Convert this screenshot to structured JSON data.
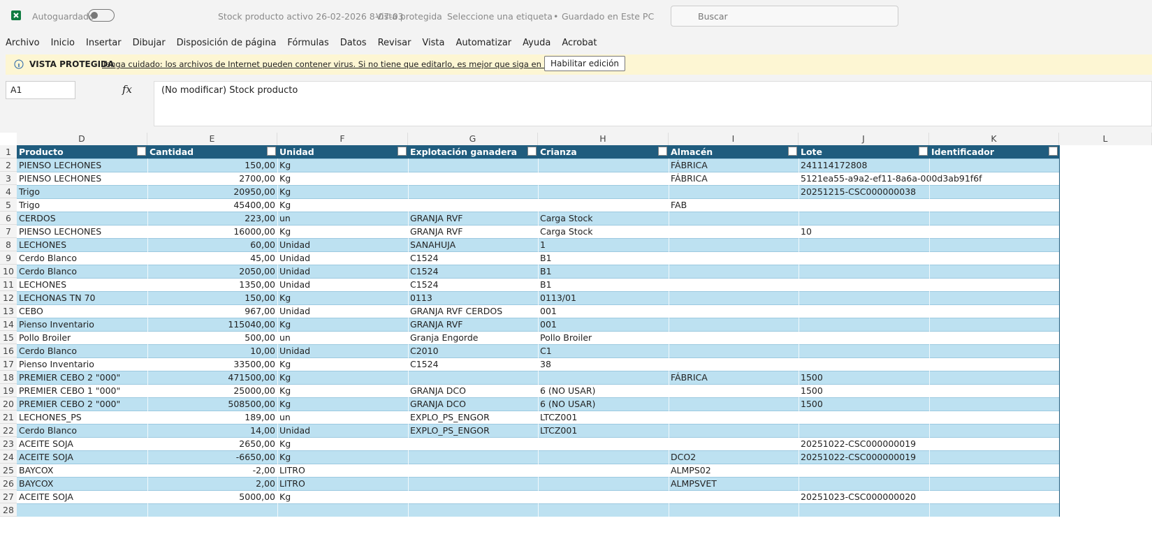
{
  "title_bar": {
    "autosave_label": "Autoguardado",
    "document_title": "Stock producto activo 26-02-2026 8-07-03",
    "view_mode": "Vista protegida",
    "sensitivity": "Seleccione una etiqueta",
    "separator": "•",
    "save_status": "Guardado en Este PC",
    "search_placeholder": "Buscar"
  },
  "menu": [
    "Archivo",
    "Inicio",
    "Insertar",
    "Dibujar",
    "Disposición de página",
    "Fórmulas",
    "Datos",
    "Revisar",
    "Vista",
    "Automatizar",
    "Ayuda",
    "Acrobat"
  ],
  "protected_bar": {
    "label": "VISTA PROTEGIDA",
    "message": "Tenga cuidado: los archivos de Internet pueden contener virus. Si no tiene que editarlo, es mejor que siga en Vista protegida.",
    "button": "Habilitar edición"
  },
  "formula_bar": {
    "name_box": "A1",
    "function_icon": "fx",
    "formula": "(No modificar) Stock producto"
  },
  "sheet": {
    "column_letters": [
      "D",
      "E",
      "F",
      "G",
      "H",
      "I",
      "J",
      "K",
      "L"
    ],
    "row_numbers": [
      1,
      2,
      3,
      4,
      5,
      6,
      7,
      8,
      9,
      10,
      11,
      12,
      13,
      14,
      15,
      16,
      17,
      18,
      19,
      20,
      21,
      22,
      23,
      24,
      25,
      26,
      27,
      28
    ],
    "header": [
      "Producto",
      "Cantidad",
      "Unidad",
      "Explotación ganadera",
      "Crianza",
      "Almacén",
      "Lote",
      "Identificador"
    ],
    "rows": [
      [
        "PIENSO LECHONES",
        "150,00",
        "Kg",
        null,
        null,
        "FÁBRICA",
        "241114172808",
        null
      ],
      [
        "PIENSO LECHONES",
        "2700,00",
        "Kg",
        null,
        null,
        "FÁBRICA",
        "5121ea55-a9a2-ef11-8a6a-000d3ab91f6f",
        null
      ],
      [
        "Trigo",
        "20950,00",
        "Kg",
        null,
        null,
        null,
        "20251215-CSC000000038",
        null
      ],
      [
        "Trigo",
        "45400,00",
        "Kg",
        null,
        null,
        "FAB",
        null,
        null
      ],
      [
        "CERDOS",
        "223,00",
        "un",
        "GRANJA RVF",
        "Carga Stock",
        null,
        null,
        null
      ],
      [
        "PIENSO LECHONES",
        "16000,00",
        "Kg",
        "GRANJA RVF",
        "Carga Stock",
        null,
        "10",
        null
      ],
      [
        "LECHONES",
        "60,00",
        "Unidad",
        "SANAHUJA",
        "1",
        null,
        null,
        null
      ],
      [
        "Cerdo Blanco",
        "45,00",
        "Unidad",
        "C1524",
        "B1",
        null,
        null,
        null
      ],
      [
        "Cerdo Blanco",
        "2050,00",
        "Unidad",
        "C1524",
        "B1",
        null,
        null,
        null
      ],
      [
        "LECHONES",
        "1350,00",
        "Unidad",
        "C1524",
        "B1",
        null,
        null,
        null
      ],
      [
        "LECHONAS TN 70",
        "150,00",
        "Kg",
        "0113",
        "0113/01",
        null,
        null,
        null
      ],
      [
        "CEBO",
        "967,00",
        "Unidad",
        "GRANJA RVF CERDOS",
        "001",
        null,
        null,
        null
      ],
      [
        "Pienso Inventario",
        "115040,00",
        "Kg",
        "GRANJA RVF",
        "001",
        null,
        null,
        null
      ],
      [
        "Pollo Broiler",
        "500,00",
        "un",
        "Granja Engorde",
        "Pollo Broiler",
        null,
        null,
        null
      ],
      [
        "Cerdo Blanco",
        "10,00",
        "Unidad",
        "C2010",
        "C1",
        null,
        null,
        null
      ],
      [
        "Pienso Inventario",
        "33500,00",
        "Kg",
        "C1524",
        "38",
        null,
        null,
        null
      ],
      [
        "PREMIER CEBO 2 \"000\"",
        "471500,00",
        "Kg",
        null,
        null,
        "FÁBRICA",
        "1500",
        null
      ],
      [
        "PREMIER CEBO 1 \"000\"",
        "25000,00",
        "Kg",
        "GRANJA DCO",
        "6 (NO USAR)",
        null,
        "1500",
        null
      ],
      [
        "PREMIER CEBO 2 \"000\"",
        "508500,00",
        "Kg",
        "GRANJA DCO",
        "6 (NO USAR)",
        null,
        "1500",
        null
      ],
      [
        "LECHONES_PS",
        "189,00",
        "un",
        "EXPLO_PS_ENGOR",
        "LTCZ001",
        null,
        null,
        null
      ],
      [
        "Cerdo Blanco",
        "14,00",
        "Unidad",
        "EXPLO_PS_ENGOR",
        "LTCZ001",
        null,
        null,
        null
      ],
      [
        "ACEITE SOJA",
        "2650,00",
        "Kg",
        null,
        null,
        null,
        "20251022-CSC000000019",
        null
      ],
      [
        "ACEITE SOJA",
        "-6650,00",
        "Kg",
        null,
        null,
        "DCO2",
        "20251022-CSC000000019",
        null
      ],
      [
        "BAYCOX",
        "-2,00",
        "LITRO",
        null,
        null,
        "ALMPS02",
        null,
        null
      ],
      [
        "BAYCOX",
        "2,00",
        "LITRO",
        null,
        null,
        "ALMPSVET",
        null,
        null
      ],
      [
        "ACEITE SOJA",
        "5000,00",
        "Kg",
        null,
        null,
        null,
        "20251023-CSC000000020",
        null
      ],
      [
        null,
        null,
        null,
        null,
        null,
        null,
        null,
        null
      ]
    ]
  }
}
